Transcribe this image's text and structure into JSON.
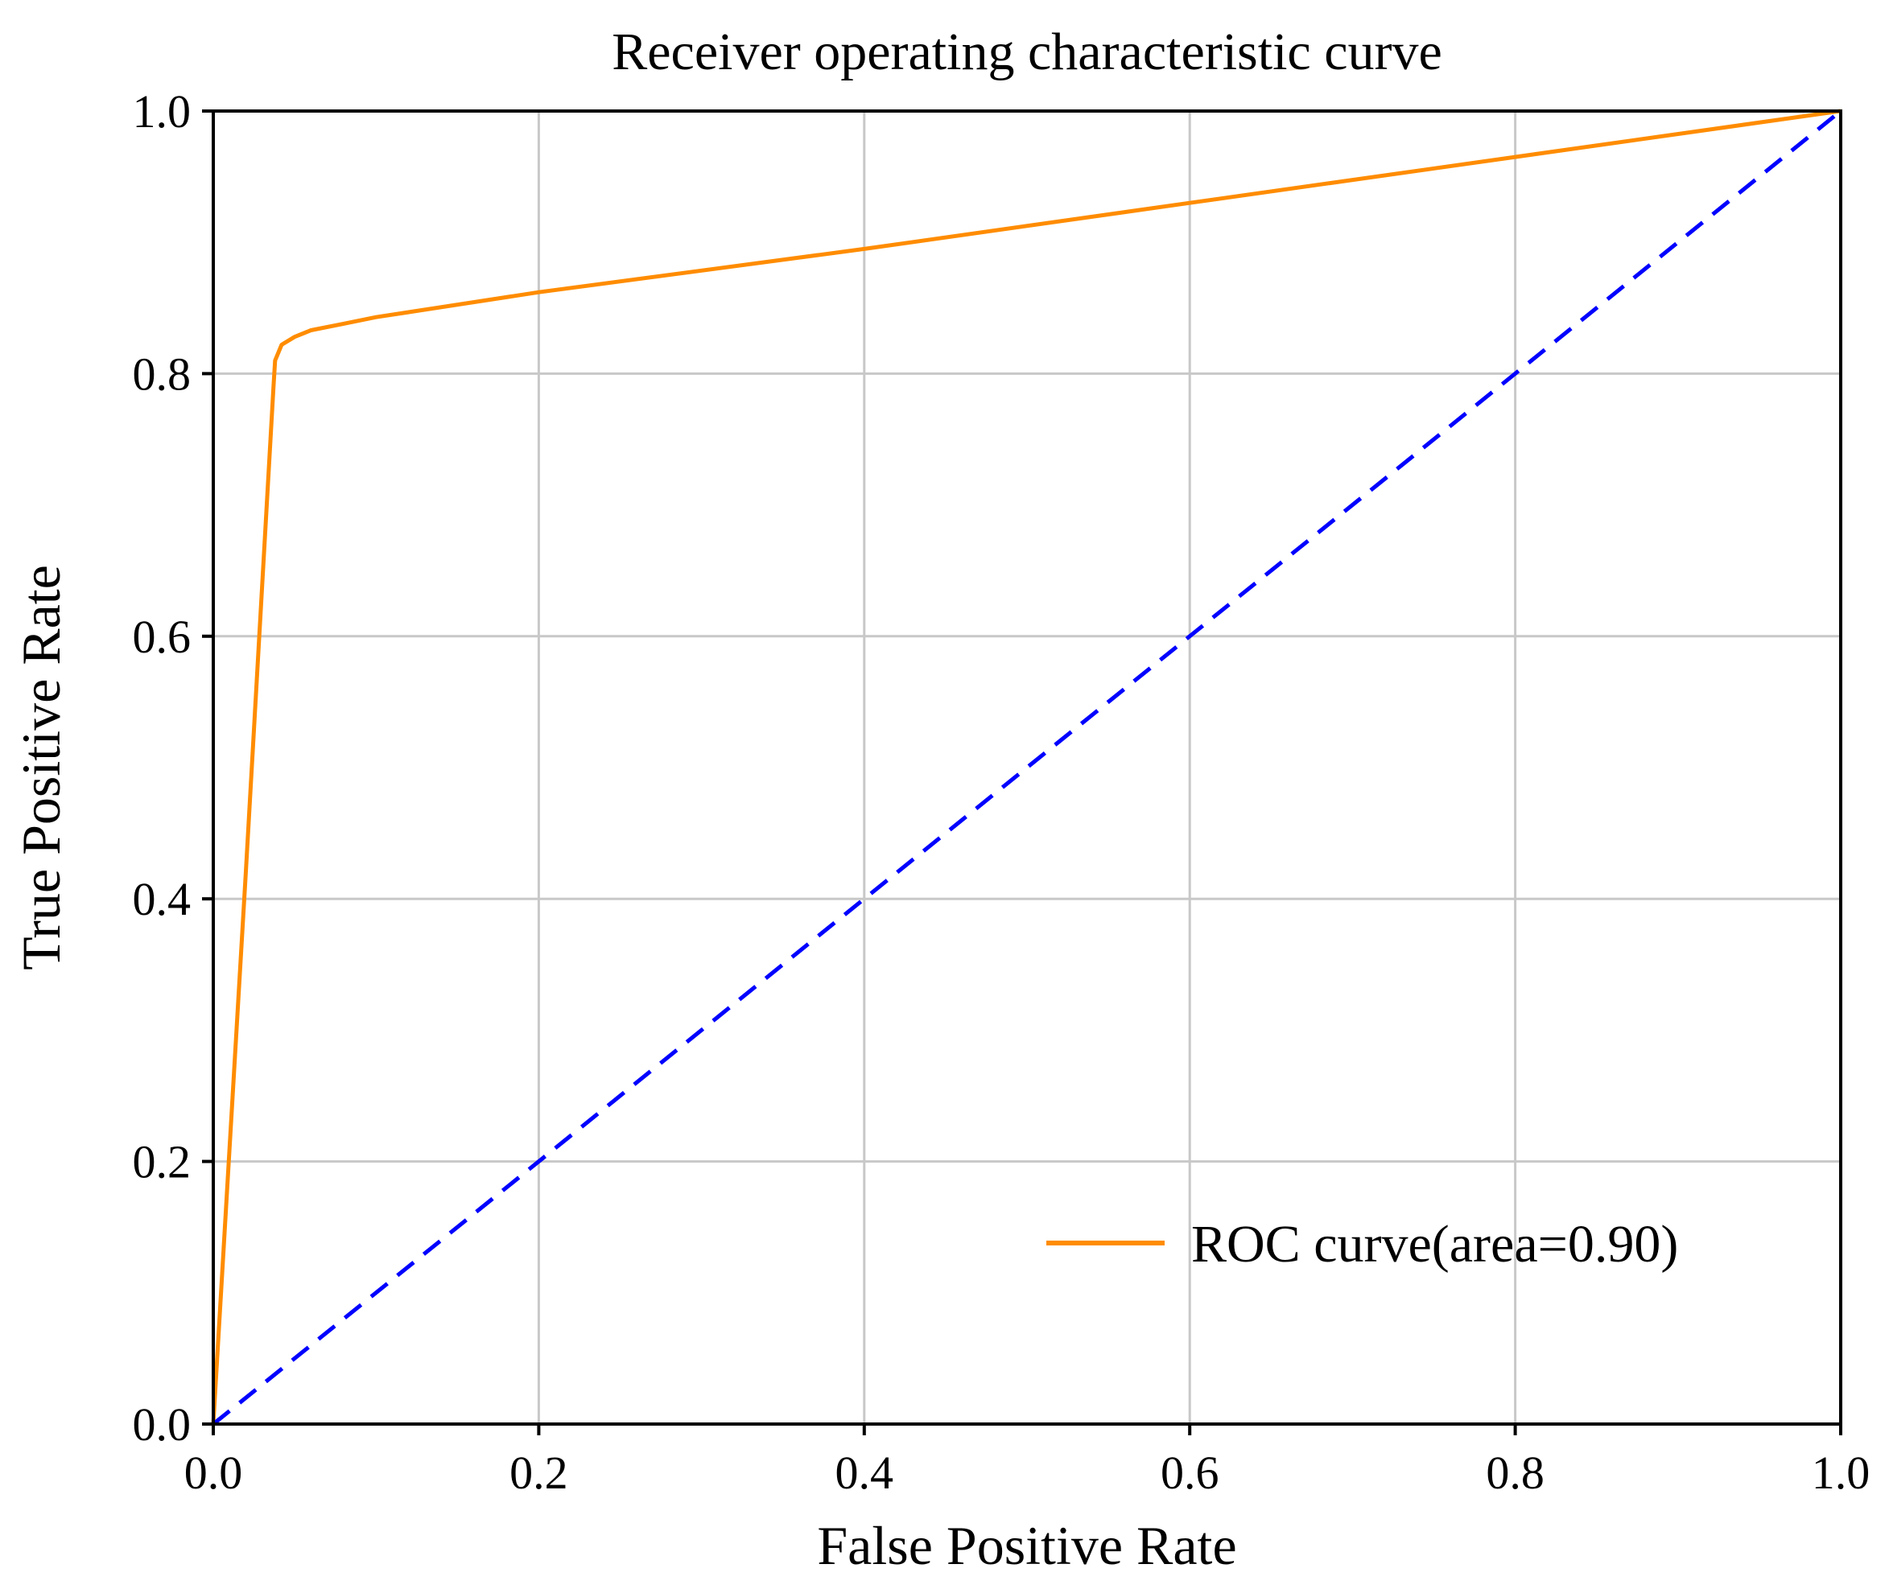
{
  "chart_data": {
    "type": "line",
    "title": "Receiver operating characteristic curve",
    "xlabel": "False Positive Rate",
    "ylabel": "True Positive Rate",
    "xlim": [
      0.0,
      1.0
    ],
    "ylim": [
      0.0,
      1.0
    ],
    "xticks": [
      "0.0",
      "0.2",
      "0.4",
      "0.6",
      "0.8",
      "1.0"
    ],
    "yticks": [
      "0.0",
      "0.2",
      "0.4",
      "0.6",
      "0.8",
      "1.0"
    ],
    "grid": true,
    "legend_position": "lower-right",
    "series": [
      {
        "name": "ROC curve(area=0.90)",
        "color": "#ff8c00",
        "line_style": "solid",
        "x": [
          0.0,
          0.02,
          0.037,
          0.038,
          0.042,
          0.05,
          0.06,
          0.08,
          0.1,
          0.2,
          0.4,
          0.6,
          0.8,
          1.0
        ],
        "y": [
          0.0,
          0.42,
          0.79,
          0.81,
          0.822,
          0.828,
          0.833,
          0.838,
          0.843,
          0.862,
          0.895,
          0.93,
          0.965,
          1.0
        ]
      },
      {
        "color": "#0000ff",
        "line_style": "dashed",
        "x": [
          0.0,
          1.0
        ],
        "y": [
          0.0,
          1.0
        ]
      }
    ]
  }
}
